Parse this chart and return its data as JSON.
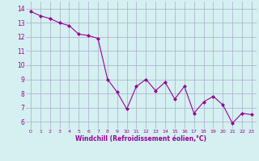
{
  "x": [
    0,
    1,
    2,
    3,
    4,
    5,
    6,
    7,
    8,
    9,
    10,
    11,
    12,
    13,
    14,
    15,
    16,
    17,
    18,
    19,
    20,
    21,
    22,
    23
  ],
  "y": [
    13.8,
    13.5,
    13.3,
    13.0,
    12.8,
    12.2,
    12.1,
    11.9,
    9.0,
    8.1,
    6.9,
    8.5,
    9.0,
    8.2,
    8.8,
    7.6,
    8.5,
    6.6,
    7.4,
    7.8,
    7.2,
    5.9,
    6.6,
    6.5
  ],
  "line_color": "#990099",
  "marker": "D",
  "marker_size": 2,
  "bg_color": "#d4f0f0",
  "grid_color": "#aaaacc",
  "xlabel": "Windchill (Refroidissement éolien,°C)",
  "xlabel_color": "#990099",
  "tick_color": "#990099",
  "ylim": [
    5.5,
    14.5
  ],
  "xlim": [
    -0.5,
    23.5
  ],
  "yticks": [
    6,
    7,
    8,
    9,
    10,
    11,
    12,
    13,
    14
  ],
  "xticks": [
    0,
    1,
    2,
    3,
    4,
    5,
    6,
    7,
    8,
    9,
    10,
    11,
    12,
    13,
    14,
    15,
    16,
    17,
    18,
    19,
    20,
    21,
    22,
    23
  ]
}
